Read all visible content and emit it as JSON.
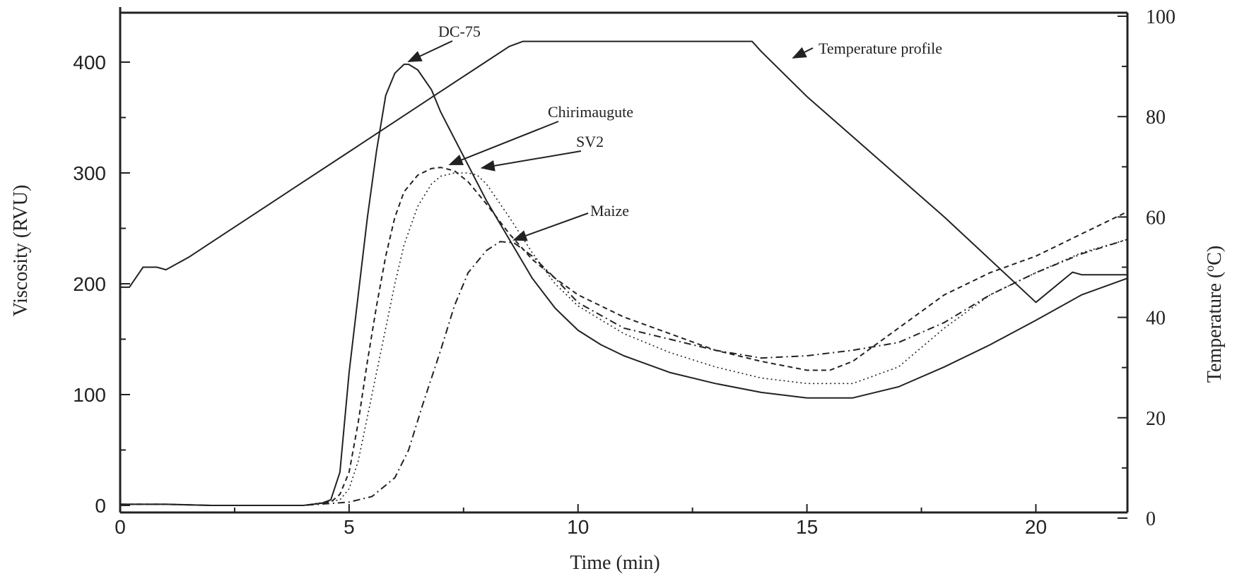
{
  "chart_data": {
    "type": "line",
    "xlabel": "Time (min)",
    "ylabel": "Viscosity (RVU)",
    "ylabel_right_prefix": "Temperature (",
    "ylabel_right_sup": "o",
    "ylabel_right_suffix": "C)",
    "xlim": [
      0,
      22
    ],
    "ylim": [
      0,
      440
    ],
    "ylim_right": [
      0,
      100
    ],
    "x_ticks": [
      0,
      5,
      10,
      15,
      20
    ],
    "x_tick_labels": [
      "0",
      "5",
      "10",
      "15",
      "20"
    ],
    "y_ticks": [
      0,
      100,
      200,
      300,
      400
    ],
    "y_tick_labels": [
      "0",
      "100",
      "200",
      "300",
      "400"
    ],
    "y_right_ticks": [
      0,
      20,
      40,
      60,
      80,
      100
    ],
    "y_right_tick_labels": [
      "0",
      "20",
      "40",
      "60",
      "80",
      "100"
    ],
    "grid": false,
    "series": [
      {
        "name": "DC-75",
        "axis": "left",
        "style": "solid",
        "x": [
          0,
          0.5,
          1,
          2,
          3,
          4,
          4.4,
          4.6,
          4.8,
          5.0,
          5.2,
          5.4,
          5.6,
          5.8,
          6.0,
          6.2,
          6.3,
          6.5,
          6.8,
          7.0,
          7.5,
          8.0,
          8.5,
          9.0,
          9.5,
          10.0,
          10.5,
          11,
          12,
          13,
          14,
          15,
          16,
          17,
          18,
          19,
          20,
          21,
          22
        ],
        "y": [
          1,
          1,
          1,
          0,
          0,
          0,
          2,
          5,
          30,
          120,
          190,
          260,
          320,
          370,
          390,
          398,
          398,
          393,
          375,
          355,
          315,
          275,
          240,
          205,
          178,
          158,
          145,
          135,
          120,
          110,
          102,
          97,
          97,
          107,
          125,
          145,
          167,
          190,
          205
        ]
      },
      {
        "name": "Chirimaugute",
        "axis": "left",
        "style": "dashed",
        "x": [
          0,
          1,
          2,
          3,
          4,
          4.6,
          4.8,
          5.0,
          5.2,
          5.4,
          5.6,
          5.8,
          6.0,
          6.2,
          6.5,
          6.8,
          7.0,
          7.3,
          7.6,
          8.0,
          8.5,
          9.0,
          9.5,
          10,
          11,
          12,
          13,
          14,
          15,
          15.5,
          16,
          17,
          18,
          19,
          20,
          21,
          22
        ],
        "y": [
          1,
          1,
          0,
          0,
          0,
          3,
          10,
          30,
          75,
          130,
          180,
          225,
          260,
          283,
          298,
          304,
          305,
          302,
          292,
          272,
          245,
          222,
          205,
          190,
          170,
          155,
          140,
          130,
          122,
          122,
          130,
          160,
          190,
          210,
          225,
          245,
          265
        ]
      },
      {
        "name": "SV2",
        "axis": "left",
        "style": "dotted",
        "x": [
          0,
          1,
          2,
          3,
          4,
          4.8,
          5.0,
          5.2,
          5.4,
          5.6,
          5.8,
          6.0,
          6.2,
          6.5,
          6.8,
          7.0,
          7.3,
          7.6,
          7.8,
          8.0,
          8.5,
          9.0,
          9.5,
          10,
          11,
          12,
          13,
          14,
          15,
          16,
          17,
          18,
          19,
          20,
          21,
          22
        ],
        "y": [
          1,
          1,
          0,
          0,
          0,
          5,
          15,
          40,
          80,
          120,
          160,
          200,
          235,
          270,
          290,
          297,
          300,
          300,
          298,
          290,
          260,
          228,
          200,
          180,
          155,
          138,
          125,
          115,
          110,
          110,
          125,
          160,
          190,
          210,
          228,
          240
        ]
      },
      {
        "name": "Maize",
        "axis": "left",
        "style": "dashdot",
        "x": [
          0,
          1,
          2,
          3,
          4,
          5,
          5.5,
          6.0,
          6.3,
          6.6,
          7.0,
          7.3,
          7.6,
          8.0,
          8.3,
          8.6,
          9.0,
          9.5,
          10,
          11,
          12,
          13,
          14,
          15,
          16,
          17,
          18,
          19,
          20,
          21,
          22
        ],
        "y": [
          1,
          1,
          0,
          0,
          0,
          3,
          8,
          25,
          50,
          90,
          140,
          180,
          210,
          230,
          238,
          237,
          225,
          205,
          183,
          160,
          150,
          140,
          133,
          135,
          140,
          147,
          165,
          190,
          210,
          227,
          240
        ]
      },
      {
        "name": "Temperature profile",
        "axis": "right",
        "style": "solid",
        "x": [
          0,
          0.2,
          0.5,
          0.8,
          1.0,
          1.5,
          2,
          3,
          4,
          5,
          6,
          7,
          8,
          8.5,
          8.8,
          9,
          10,
          11,
          12,
          13,
          13.8,
          14,
          15,
          16,
          17,
          18,
          19,
          20,
          20.8,
          21,
          22
        ],
        "y": [
          46,
          46,
          50,
          50,
          49.5,
          52,
          55,
          61,
          67,
          73,
          79,
          85,
          91,
          94,
          95,
          95,
          95,
          95,
          95,
          95,
          95,
          93,
          84,
          76,
          68,
          60,
          51.5,
          43,
          49,
          48.5,
          48.5
        ]
      }
    ],
    "annotations": [
      {
        "text": "DC-75",
        "target": [
          6.3,
          398
        ]
      },
      {
        "text": "Temperature profile",
        "target": [
          14.7,
          430
        ]
      },
      {
        "text": "Chirimaugute",
        "target": [
          7.2,
          305
        ]
      },
      {
        "text": "SV2",
        "target": [
          7.9,
          302
        ]
      },
      {
        "text": "Maize",
        "target": [
          8.6,
          237
        ]
      }
    ]
  }
}
